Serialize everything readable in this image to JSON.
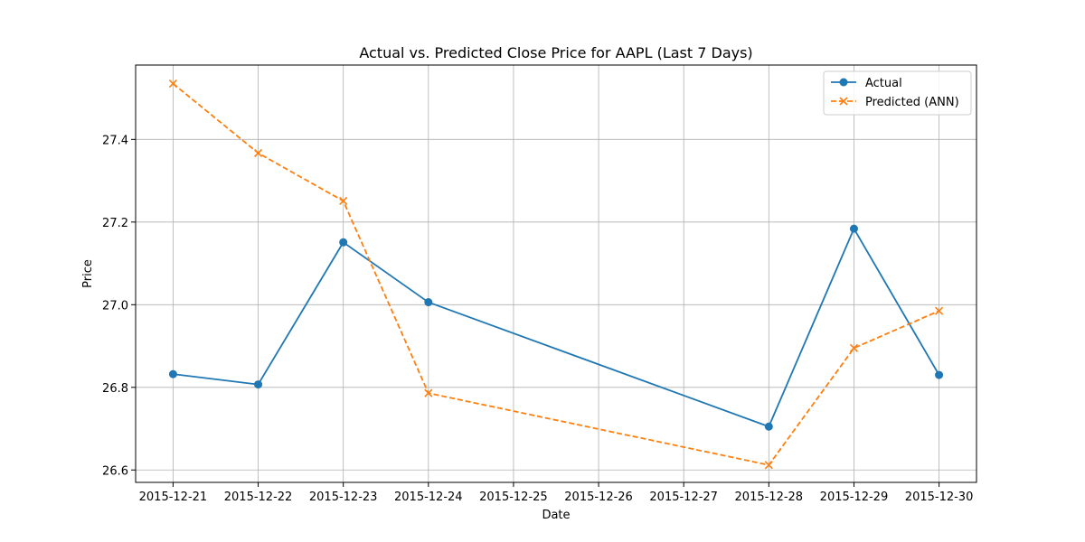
{
  "chart_data": {
    "type": "line",
    "title": "Actual vs. Predicted Close Price for AAPL (Last 7 Days)",
    "xlabel": "Date",
    "ylabel": "Price",
    "x_ticks": [
      "2015-12-21",
      "2015-12-22",
      "2015-12-23",
      "2015-12-24",
      "2015-12-25",
      "2015-12-26",
      "2015-12-27",
      "2015-12-28",
      "2015-12-29",
      "2015-12-30"
    ],
    "y_ticks": [
      "26.6",
      "26.8",
      "27.0",
      "27.2",
      "27.4"
    ],
    "xlim": [
      "2015-12-20.56",
      "2015-12-30.44"
    ],
    "ylim": [
      26.57,
      27.58
    ],
    "grid": true,
    "legend_position": "upper right",
    "series": [
      {
        "name": "Actual",
        "color": "#1f77b4",
        "line_style": "solid",
        "marker": "circle",
        "x": [
          "2015-12-21",
          "2015-12-22",
          "2015-12-23",
          "2015-12-24",
          "2015-12-28",
          "2015-12-29",
          "2015-12-30"
        ],
        "values": [
          26.832,
          26.807,
          27.151,
          27.006,
          26.705,
          27.184,
          26.83
        ]
      },
      {
        "name": "Predicted (ANN)",
        "color": "#ff7f0e",
        "line_style": "dashed",
        "marker": "x",
        "x": [
          "2015-12-21",
          "2015-12-22",
          "2015-12-23",
          "2015-12-24",
          "2015-12-28",
          "2015-12-29",
          "2015-12-30"
        ],
        "values": [
          27.535,
          27.367,
          27.251,
          26.786,
          26.612,
          26.895,
          26.985
        ]
      }
    ]
  }
}
